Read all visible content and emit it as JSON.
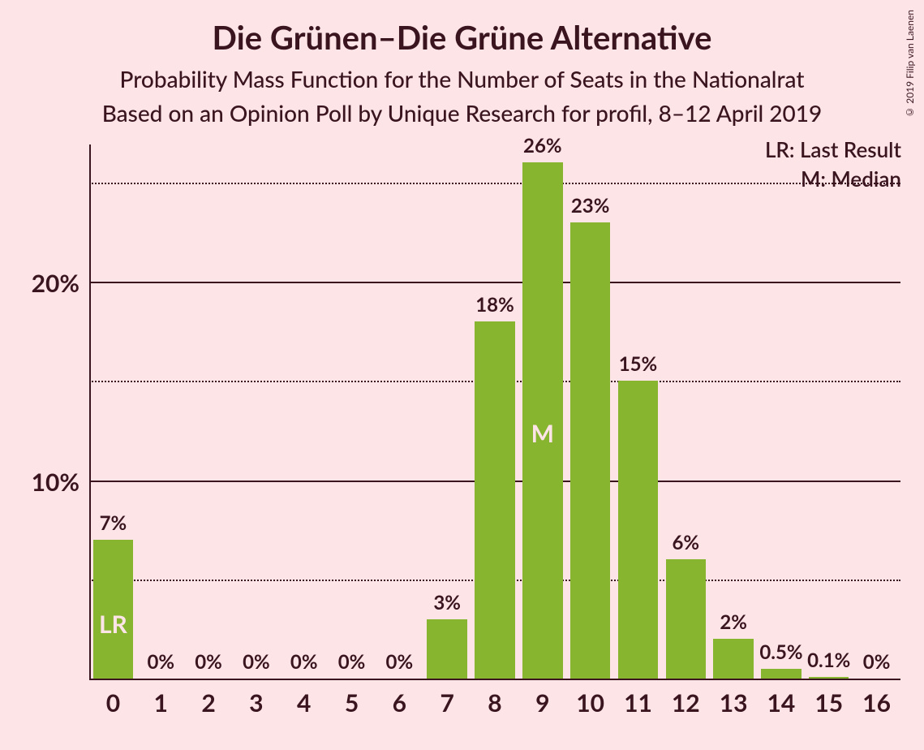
{
  "title": "Die Grünen–Die Grüne Alternative",
  "subtitle1": "Probability Mass Function for the Number of Seats in the Nationalrat",
  "subtitle2": "Based on an Opinion Poll by Unique Research for profil, 8–12 April 2019",
  "credit": "© 2019 Filip van Laenen",
  "legend": {
    "lr": "LR: Last Result",
    "m": "M: Median"
  },
  "chart": {
    "type": "bar",
    "bar_color": "#87b52f",
    "background_color": "#fce4e7",
    "text_color": "#3a1520",
    "marker_text_color": "#fce4e7",
    "title_fontsize": 40,
    "subtitle_fontsize": 28,
    "tick_fontsize": 30,
    "bar_label_fontsize": 24,
    "y_max": 27,
    "y_major_ticks": [
      10,
      20
    ],
    "y_minor_ticks": [
      5,
      15,
      25
    ],
    "bar_width_ratio": 0.84,
    "categories": [
      "0",
      "1",
      "2",
      "3",
      "4",
      "5",
      "6",
      "7",
      "8",
      "9",
      "10",
      "11",
      "12",
      "13",
      "14",
      "15",
      "16"
    ],
    "values": [
      7,
      0,
      0,
      0,
      0,
      0,
      0,
      3,
      18,
      26,
      23,
      15,
      6,
      2,
      0.5,
      0.1,
      0
    ],
    "labels": [
      "7%",
      "0%",
      "0%",
      "0%",
      "0%",
      "0%",
      "0%",
      "3%",
      "18%",
      "26%",
      "23%",
      "15%",
      "6%",
      "2%",
      "0.5%",
      "0.1%",
      "0%"
    ],
    "markers": {
      "0": "LR",
      "9": "M"
    }
  }
}
